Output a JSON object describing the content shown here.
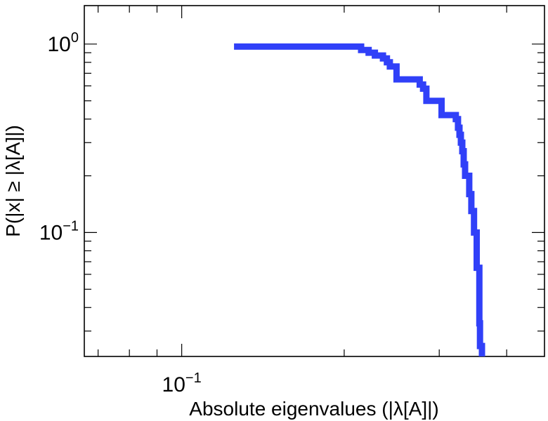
{
  "chart_data": {
    "type": "line",
    "title": "",
    "xlabel": "Absolute eigenvalues (|λ[A]|)",
    "ylabel": "P(|x| ≥ |λ[A]|)",
    "x_scale": "log",
    "y_scale": "log",
    "xlim": [
      0.066,
      0.47
    ],
    "ylim": [
      0.022,
      1.6
    ],
    "x_ticks": [
      {
        "base": "10",
        "exp": "−1",
        "value": 0.1
      }
    ],
    "y_ticks": [
      {
        "base": "10",
        "exp": "0",
        "value": 1.0
      },
      {
        "base": "10",
        "exp": "−1",
        "value": 0.1
      }
    ],
    "grid": false,
    "step": true,
    "color": "#3040F8",
    "series": [
      {
        "x": [
          0.125,
          0.21,
          0.215,
          0.222,
          0.228,
          0.236,
          0.24,
          0.243,
          0.25,
          0.27,
          0.276,
          0.28,
          0.284,
          0.3,
          0.303,
          0.318,
          0.322,
          0.325,
          0.327,
          0.329,
          0.331,
          0.333,
          0.335,
          0.341,
          0.344,
          0.348,
          0.352,
          0.356,
          0.357,
          0.36
        ],
        "y": [
          0.97,
          0.97,
          0.93,
          0.9,
          0.87,
          0.84,
          0.8,
          0.76,
          0.65,
          0.65,
          0.61,
          0.58,
          0.5,
          0.5,
          0.42,
          0.42,
          0.4,
          0.36,
          0.33,
          0.3,
          0.27,
          0.23,
          0.2,
          0.16,
          0.13,
          0.1,
          0.065,
          0.033,
          0.025,
          0.022
        ]
      }
    ]
  }
}
